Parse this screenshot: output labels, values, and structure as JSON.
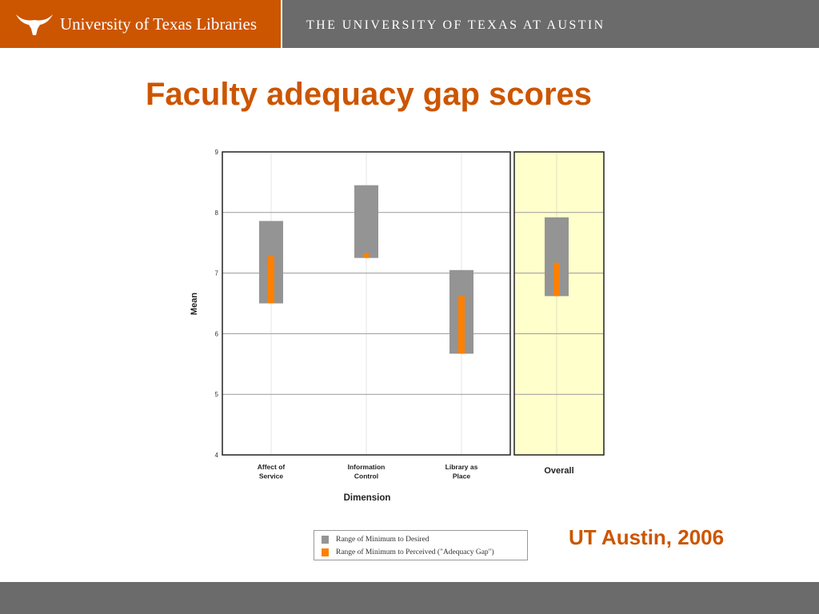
{
  "header": {
    "library_name": "University of Texas Libraries",
    "university_name": "THE UNIVERSITY OF TEXAS AT AUSTIN",
    "logo_icon": "longhorn-icon",
    "brand_color": "#cc5500",
    "bar_color": "#6b6b6b"
  },
  "slide": {
    "title": "Faculty adequacy gap scores",
    "source_note": "UT Austin, 2006"
  },
  "chart_data": {
    "type": "range-bar",
    "xlabel": "Dimension",
    "ylabel": "Mean",
    "ylim": [
      4,
      9
    ],
    "yticks": [
      4,
      5,
      6,
      7,
      8,
      9
    ],
    "grid": true,
    "legend_position": "bottom",
    "categories": [
      {
        "label_lines": [
          "Affect of",
          "Service"
        ],
        "min": 6.5,
        "desired": 7.86,
        "perceived": 7.28
      },
      {
        "label_lines": [
          "Information",
          "Control"
        ],
        "min": 7.25,
        "desired": 8.45,
        "perceived": 7.33
      },
      {
        "label_lines": [
          "Library as",
          "Place"
        ],
        "min": 5.67,
        "desired": 7.05,
        "perceived": 6.62
      }
    ],
    "overall": {
      "label": "Overall",
      "min": 6.62,
      "desired": 7.92,
      "perceived": 7.17
    },
    "series": [
      {
        "name": "Range of Minimum to Desired",
        "color": "#949494"
      },
      {
        "name": "Range of Minimum to Perceived (\"Adequacy Gap\")",
        "color": "#ff8000"
      }
    ],
    "overall_highlight_color": "#ffffcc"
  }
}
